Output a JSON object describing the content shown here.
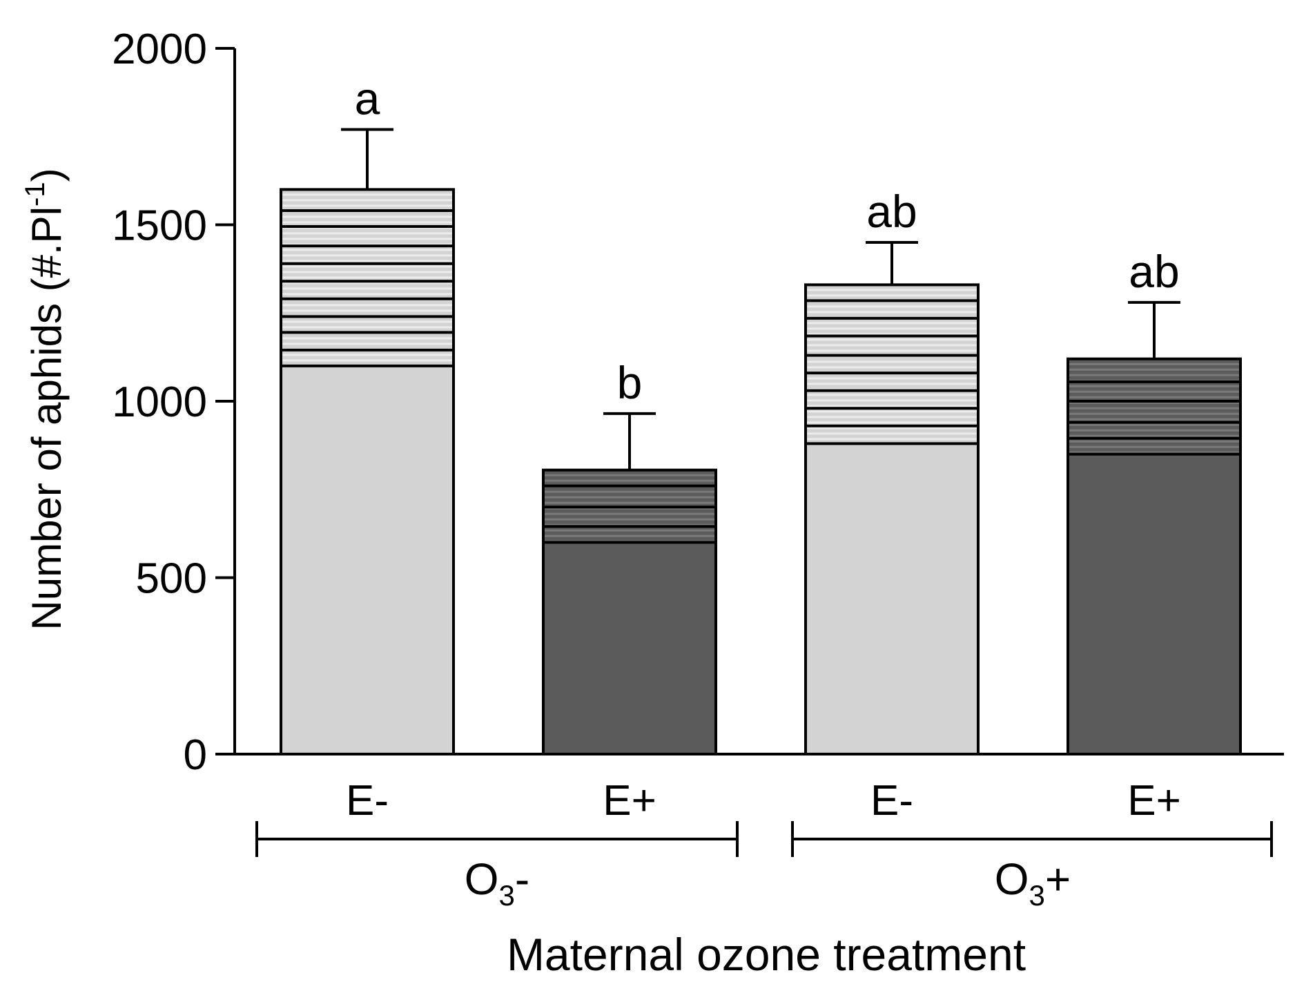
{
  "chart_data": {
    "type": "bar",
    "title": "",
    "ylabel": "Number of aphids (#.Pl",
    "ylabel_sup": "-1",
    "ylabel_close": ")",
    "xlabel": "Maternal ozone treatment",
    "ylim": [
      0,
      2000
    ],
    "yticks": [
      0,
      500,
      1000,
      1500,
      2000
    ],
    "categories": [
      "E-",
      "E+",
      "E-",
      "E+"
    ],
    "groups": [
      {
        "label_main": "O",
        "label_sub": "3",
        "label_suffix": "-"
      },
      {
        "label_main": "O",
        "label_sub": "3",
        "label_suffix": "+"
      }
    ],
    "bars": [
      {
        "category": "E-",
        "group": "O3-",
        "value": 1600,
        "error": 170,
        "letter": "a",
        "fill": "#d3d3d3",
        "stripe_start": 1100,
        "stripes": [
          1540,
          1495,
          1440,
          1390,
          1340,
          1290,
          1240,
          1195,
          1145,
          1100
        ]
      },
      {
        "category": "E+",
        "group": "O3-",
        "value": 805,
        "error": 160,
        "letter": "b",
        "fill": "#5b5b5b",
        "stripe_start": 600,
        "stripes": [
          760,
          700,
          645,
          600
        ]
      },
      {
        "category": "E-",
        "group": "O3+",
        "value": 1330,
        "error": 120,
        "letter": "ab",
        "fill": "#d3d3d3",
        "stripe_start": 880,
        "stripes": [
          1285,
          1235,
          1185,
          1130,
          1080,
          1030,
          980,
          930,
          880
        ]
      },
      {
        "category": "E+",
        "group": "O3+",
        "value": 1120,
        "error": 160,
        "letter": "ab",
        "fill": "#5b5b5b",
        "stripe_start": 850,
        "stripes": [
          1055,
          1000,
          940,
          895,
          850
        ]
      }
    ],
    "grid": false,
    "legend": "none"
  }
}
